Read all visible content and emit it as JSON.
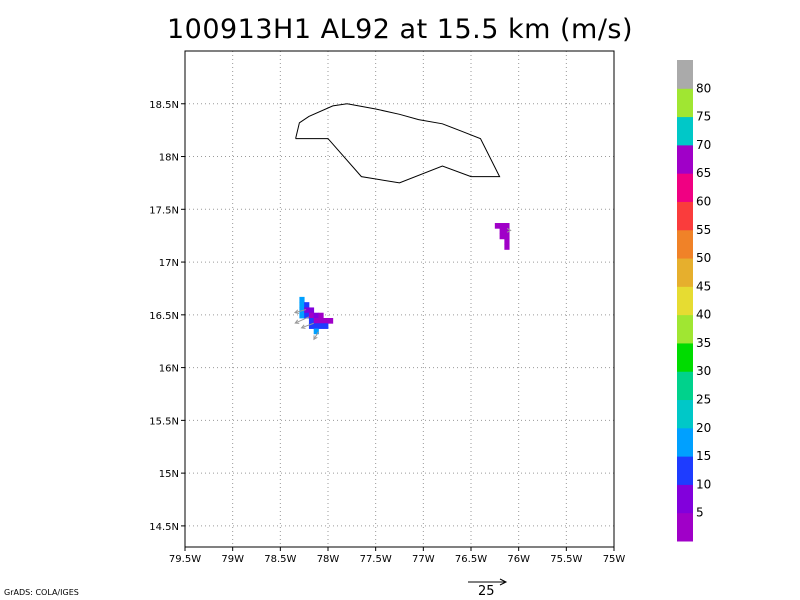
{
  "title": "100913H1 AL92 at 15.5 km (m/s)",
  "credit": "GrADS: COLA/IGES",
  "x_axis": {
    "ticks": [
      "79.5W",
      "79W",
      "78.5W",
      "78W",
      "77.5W",
      "77W",
      "76.5W",
      "76W",
      "75.5W",
      "75W"
    ]
  },
  "y_axis": {
    "ticks": [
      "14.5N",
      "15N",
      "15.5N",
      "16N",
      "16.5N",
      "17N",
      "17.5N",
      "18N",
      "18.5N"
    ]
  },
  "colorbar": {
    "labels": [
      "5",
      "10",
      "15",
      "20",
      "25",
      "30",
      "35",
      "40",
      "45",
      "50",
      "55",
      "60",
      "65",
      "70",
      "75",
      "80"
    ],
    "colors": [
      "#a000c8",
      "#8200dc",
      "#1e3cff",
      "#00a0ff",
      "#00c8c8",
      "#00d28c",
      "#00dc00",
      "#a0e632",
      "#e6dc32",
      "#e6af2d",
      "#f08228",
      "#fa3c3c",
      "#f00082",
      "#a000c8",
      "#00c8c8",
      "#a0e632",
      "#aaaaaa"
    ]
  },
  "reference_vector": {
    "label": "25",
    "speed_ms": 25
  },
  "map_bounds": {
    "lon_min": -79.5,
    "lon_max": -75.0,
    "lat_min": 14.3,
    "lat_max": 19.0
  },
  "coastline_lonlat": [
    [
      -78.34,
      18.17
    ],
    [
      -78.3,
      18.32
    ],
    [
      -78.2,
      18.38
    ],
    [
      -77.95,
      18.48
    ],
    [
      -77.8,
      18.5
    ],
    [
      -77.5,
      18.45
    ],
    [
      -77.25,
      18.4
    ],
    [
      -77.05,
      18.35
    ],
    [
      -76.8,
      18.31
    ],
    [
      -76.6,
      18.24
    ],
    [
      -76.4,
      18.17
    ],
    [
      -76.2,
      17.81
    ],
    [
      -76.5,
      17.81
    ],
    [
      -76.8,
      17.91
    ],
    [
      -77.25,
      17.75
    ],
    [
      -77.65,
      17.81
    ],
    [
      -78.0,
      18.17
    ],
    [
      -78.34,
      18.17
    ]
  ],
  "wind_cells": [
    {
      "lon": -78.3,
      "lat": 16.62,
      "w": 0.05,
      "h": 0.05,
      "color_index": 3
    },
    {
      "lon": -78.3,
      "lat": 16.57,
      "w": 0.05,
      "h": 0.05,
      "color_index": 3
    },
    {
      "lon": -78.3,
      "lat": 16.52,
      "w": 0.05,
      "h": 0.05,
      "color_index": 3
    },
    {
      "lon": -78.3,
      "lat": 16.47,
      "w": 0.05,
      "h": 0.05,
      "color_index": 3
    },
    {
      "lon": -78.25,
      "lat": 16.57,
      "w": 0.05,
      "h": 0.05,
      "color_index": 2
    },
    {
      "lon": -78.25,
      "lat": 16.52,
      "w": 0.05,
      "h": 0.05,
      "color_index": 1
    },
    {
      "lon": -78.25,
      "lat": 16.47,
      "w": 0.05,
      "h": 0.05,
      "color_index": 2
    },
    {
      "lon": -78.2,
      "lat": 16.52,
      "w": 0.05,
      "h": 0.05,
      "color_index": 1
    },
    {
      "lon": -78.2,
      "lat": 16.47,
      "w": 0.05,
      "h": 0.05,
      "color_index": 0
    },
    {
      "lon": -78.2,
      "lat": 16.42,
      "w": 0.05,
      "h": 0.05,
      "color_index": 2
    },
    {
      "lon": -78.2,
      "lat": 16.37,
      "w": 0.05,
      "h": 0.05,
      "color_index": 2
    },
    {
      "lon": -78.15,
      "lat": 16.47,
      "w": 0.05,
      "h": 0.05,
      "color_index": 1
    },
    {
      "lon": -78.15,
      "lat": 16.42,
      "w": 0.05,
      "h": 0.05,
      "color_index": 0
    },
    {
      "lon": -78.15,
      "lat": 16.37,
      "w": 0.05,
      "h": 0.05,
      "color_index": 2
    },
    {
      "lon": -78.15,
      "lat": 16.32,
      "w": 0.05,
      "h": 0.05,
      "color_index": 3
    },
    {
      "lon": -78.1,
      "lat": 16.47,
      "w": 0.05,
      "h": 0.05,
      "color_index": 0
    },
    {
      "lon": -78.1,
      "lat": 16.42,
      "w": 0.05,
      "h": 0.05,
      "color_index": 0
    },
    {
      "lon": -78.1,
      "lat": 16.37,
      "w": 0.05,
      "h": 0.05,
      "color_index": 2
    },
    {
      "lon": -78.05,
      "lat": 16.42,
      "w": 0.05,
      "h": 0.05,
      "color_index": 0
    },
    {
      "lon": -78.05,
      "lat": 16.37,
      "w": 0.05,
      "h": 0.05,
      "color_index": 2
    },
    {
      "lon": -78.0,
      "lat": 16.42,
      "w": 0.05,
      "h": 0.05,
      "color_index": 0
    },
    {
      "lon": -76.25,
      "lat": 17.32,
      "w": 0.05,
      "h": 0.05,
      "color_index": 0
    },
    {
      "lon": -76.2,
      "lat": 17.32,
      "w": 0.05,
      "h": 0.05,
      "color_index": 0
    },
    {
      "lon": -76.2,
      "lat": 17.27,
      "w": 0.05,
      "h": 0.05,
      "color_index": 0
    },
    {
      "lon": -76.2,
      "lat": 17.22,
      "w": 0.05,
      "h": 0.05,
      "color_index": 0
    },
    {
      "lon": -76.15,
      "lat": 17.32,
      "w": 0.05,
      "h": 0.05,
      "color_index": 0
    },
    {
      "lon": -76.15,
      "lat": 17.27,
      "w": 0.05,
      "h": 0.05,
      "color_index": 0
    },
    {
      "lon": -76.15,
      "lat": 17.22,
      "w": 0.05,
      "h": 0.05,
      "color_index": 0
    },
    {
      "lon": -76.15,
      "lat": 17.17,
      "w": 0.05,
      "h": 0.05,
      "color_index": 0
    },
    {
      "lon": -76.15,
      "lat": 17.12,
      "w": 0.05,
      "h": 0.05,
      "color_index": 0
    }
  ],
  "wind_vectors": [
    {
      "lon": -78.23,
      "lat": 16.55,
      "u": -7.3,
      "v": -2.0
    },
    {
      "lon": -78.2,
      "lat": 16.48,
      "u": -9.0,
      "v": -4.0
    },
    {
      "lon": -78.15,
      "lat": 16.42,
      "u": -8.0,
      "v": -3.0
    },
    {
      "lon": -78.1,
      "lat": 16.34,
      "u": -3.0,
      "v": -5.0
    },
    {
      "lon": -76.1,
      "lat": 17.3,
      "u": 1.0,
      "v": 0.0
    }
  ]
}
